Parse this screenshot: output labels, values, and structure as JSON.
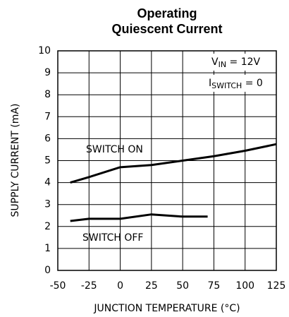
{
  "chart_data": {
    "type": "line",
    "title": [
      "Operating",
      "Quiescent Current"
    ],
    "x_label": "JUNCTION TEMPERATURE (°C)",
    "y_label": "SUPPLY CURRENT (mA)",
    "xlim": [
      -50,
      125
    ],
    "xticks": [
      -50,
      -25,
      0,
      25,
      50,
      75,
      100,
      125
    ],
    "ylim": [
      0,
      10
    ],
    "yticks": [
      0,
      1,
      2,
      3,
      4,
      5,
      6,
      7,
      8,
      9,
      10
    ],
    "grid": true,
    "annotations": [
      {
        "main": "V",
        "sub": "IN",
        "rest": " = 12V"
      },
      {
        "main": "I",
        "sub": "SWITCH",
        "rest": " = 0"
      }
    ],
    "series": [
      {
        "name": "SWITCH ON",
        "color": "#000000",
        "x": [
          -40,
          -25,
          0,
          25,
          50,
          75,
          100,
          125
        ],
        "values": [
          4.0,
          4.25,
          4.7,
          4.8,
          5.0,
          5.2,
          5.45,
          5.75
        ]
      },
      {
        "name": "SWITCH OFF",
        "color": "#000000",
        "x": [
          -40,
          -25,
          0,
          25,
          50,
          70
        ],
        "values": [
          2.25,
          2.35,
          2.35,
          2.55,
          2.45,
          2.45
        ]
      }
    ]
  }
}
